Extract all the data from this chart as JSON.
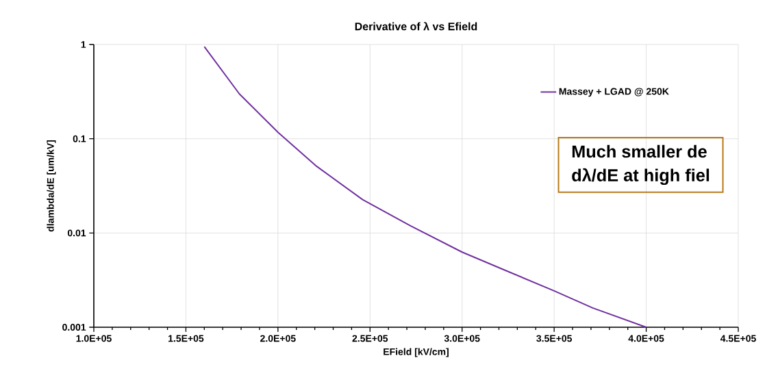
{
  "chart_data": {
    "type": "line",
    "title": "Derivative of λ vs Efield",
    "xlabel": "EField [kV/cm]",
    "ylabel": "dlambda/dE  [um/kV]",
    "annotations": [
      "Much smaller de",
      "dλ/dE at high fiel"
    ],
    "x": [
      160000,
      179000,
      200000,
      221000,
      246000,
      272000,
      300000,
      322000,
      350000,
      371000,
      400000
    ],
    "series": [
      {
        "name": "Massey + LGAD @ 250K",
        "color": "#7030a0",
        "values": [
          0.95,
          0.3,
          0.117,
          0.051,
          0.0226,
          0.0119,
          0.00627,
          0.00413,
          0.00243,
          0.0016,
          0.001
        ]
      }
    ],
    "xlim": [
      100000,
      450000
    ],
    "ylim": [
      0.001,
      1
    ],
    "xticks": [
      {
        "value": 100000,
        "label": "1.0E+05"
      },
      {
        "value": 150000,
        "label": "1.5E+05"
      },
      {
        "value": 200000,
        "label": "2.0E+05"
      },
      {
        "value": 250000,
        "label": "2.5E+05"
      },
      {
        "value": 300000,
        "label": "3.0E+05"
      },
      {
        "value": 350000,
        "label": "3.5E+05"
      },
      {
        "value": 400000,
        "label": "4.0E+05"
      },
      {
        "value": 450000,
        "label": "4.5E+05"
      }
    ],
    "yticks": [
      0.001,
      0.01,
      0.1,
      1
    ],
    "log": "y",
    "grid": true,
    "legend": "top right",
    "line_style": "solid"
  }
}
